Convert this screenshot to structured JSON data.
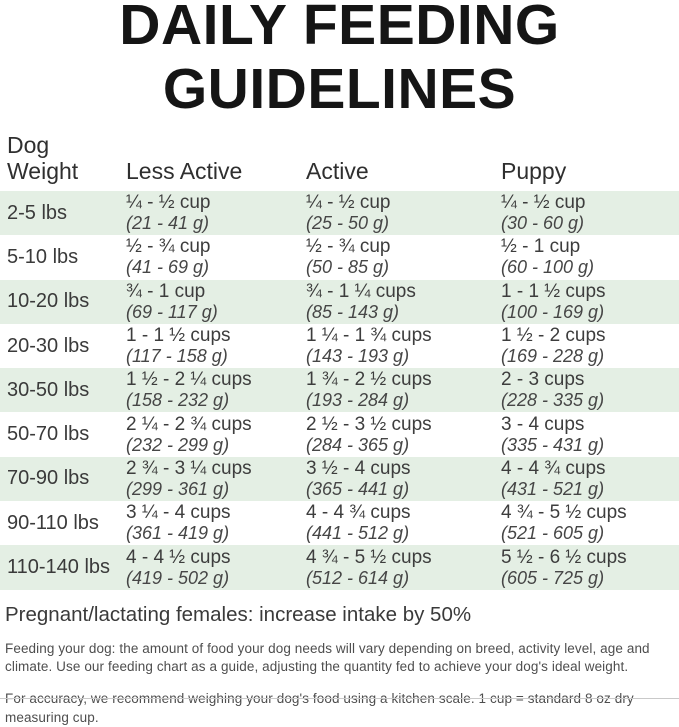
{
  "title": {
    "line1": "DAILY FEEDING",
    "line2": "GUIDELINES"
  },
  "colors": {
    "row_alt_green": "#e4efe4",
    "title_black": "#151515",
    "body_gray": "#3d3d3d"
  },
  "table": {
    "headers": {
      "weight_line1": "Dog",
      "weight_line2": "Weight",
      "less_active": "Less Active",
      "active": "Active",
      "puppy": "Puppy"
    },
    "rows": [
      {
        "weight": "2-5 lbs",
        "less_active_cups": "¼ - ½ cup",
        "less_active_grams": "(21 - 41 g)",
        "active_cups": "¼ - ½ cup",
        "active_grams": "(25 - 50 g)",
        "puppy_cups": "¼ - ½ cup",
        "puppy_grams": "(30 - 60 g)"
      },
      {
        "weight": "5-10 lbs",
        "less_active_cups": "½ - ¾ cup",
        "less_active_grams": "(41 - 69 g)",
        "active_cups": "½ - ¾ cup",
        "active_grams": "(50 - 85 g)",
        "puppy_cups": "½ - 1 cup",
        "puppy_grams": "(60 - 100 g)"
      },
      {
        "weight": "10-20 lbs",
        "less_active_cups": "¾ - 1 cup",
        "less_active_grams": "(69 - 117 g)",
        "active_cups": "¾ - 1 ¼ cups",
        "active_grams": "(85 - 143 g)",
        "puppy_cups": "1 - 1 ½ cups",
        "puppy_grams": "(100 - 169 g)"
      },
      {
        "weight": "20-30 lbs",
        "less_active_cups": "1 - 1 ½ cups",
        "less_active_grams": "(117 - 158 g)",
        "active_cups": "1 ¼ - 1 ¾ cups",
        "active_grams": "(143 - 193 g)",
        "puppy_cups": "1 ½ - 2 cups",
        "puppy_grams": "(169 - 228 g)"
      },
      {
        "weight": "30-50 lbs",
        "less_active_cups": "1 ½ - 2 ¼ cups",
        "less_active_grams": "(158 - 232 g)",
        "active_cups": "1 ¾ - 2 ½ cups",
        "active_grams": "(193 - 284 g)",
        "puppy_cups": "2 - 3 cups",
        "puppy_grams": "(228 - 335 g)"
      },
      {
        "weight": "50-70 lbs",
        "less_active_cups": "2 ¼ - 2 ¾ cups",
        "less_active_grams": "(232 - 299 g)",
        "active_cups": "2 ½ - 3 ½ cups",
        "active_grams": "(284 - 365 g)",
        "puppy_cups": "3 - 4 cups",
        "puppy_grams": "(335 - 431 g)"
      },
      {
        "weight": "70-90 lbs",
        "less_active_cups": "2 ¾ - 3 ¼ cups",
        "less_active_grams": "(299 - 361 g)",
        "active_cups": "3 ½ - 4 cups",
        "active_grams": "(365 - 441 g)",
        "puppy_cups": "4 - 4 ¾ cups",
        "puppy_grams": "(431 - 521 g)"
      },
      {
        "weight": "90-110 lbs",
        "less_active_cups": "3 ¼ - 4 cups",
        "less_active_grams": "(361 - 419 g)",
        "active_cups": "4 - 4 ¾ cups",
        "active_grams": "(441 - 512 g)",
        "puppy_cups": "4 ¾ - 5 ½ cups",
        "puppy_grams": "(521 - 605 g)"
      },
      {
        "weight": "110-140 lbs",
        "less_active_cups": "4 - 4 ½ cups",
        "less_active_grams": "(419 - 502 g)",
        "active_cups": "4 ¾ - 5 ½ cups",
        "active_grams": "(512 - 614 g)",
        "puppy_cups": "5 ½ - 6 ½ cups",
        "puppy_grams": "(605 - 725 g)"
      }
    ]
  },
  "notes": {
    "pregnant": "Pregnant/lactating females: increase intake by 50%",
    "para1": "Feeding your dog: the amount of food your dog needs will vary depending on breed, activity level, age and climate. Use our feeding chart as a guide, adjusting the quantity fed to achieve your dog's ideal weight.",
    "para2": "For accuracy, we recommend weighing your dog's food using a kitchen scale. 1 cup = standard 8 oz dry measuring cup."
  }
}
